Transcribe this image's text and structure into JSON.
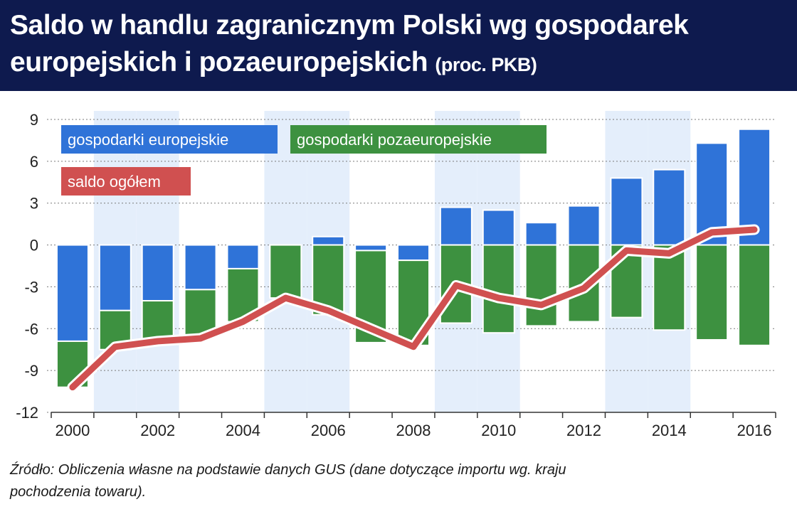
{
  "title": {
    "line1": "Saldo w handlu zagranicznym Polski wg gospodarek",
    "line2": "europejskich i pozaeuropejskich",
    "unit": "(proc. PKB)"
  },
  "source": {
    "line1": "Źródło: Obliczenia własne na podstawie danych GUS (dane dotyczące importu wg. kraju",
    "line2": "pochodzenia towaru)."
  },
  "colors": {
    "header": "#0e1a4e",
    "europe": "#2f73d8",
    "nonEurope": "#3d9140",
    "total": "#d05050",
    "stripe": "#e4eefb"
  },
  "chart_data": {
    "type": "bar",
    "stacked": true,
    "title": "Saldo w handlu zagranicznym Polski wg gospodarek europejskich i pozaeuropejskich (proc. PKB)",
    "categories": [
      "2000",
      "2001",
      "2002",
      "2003",
      "2004",
      "2005",
      "2006",
      "2007",
      "2008",
      "2009",
      "2010",
      "2011",
      "2012",
      "2013",
      "2014",
      "2015",
      "2016"
    ],
    "xtick_labels": [
      "2000",
      "2002",
      "2004",
      "2006",
      "2008",
      "2010",
      "2012",
      "2014",
      "2016"
    ],
    "ylim": [
      -12,
      9
    ],
    "yticks": [
      9,
      6,
      3,
      0,
      -3,
      -6,
      -9,
      -12
    ],
    "ytick_labels": [
      "9",
      "6",
      "3",
      "0",
      "-3",
      "-6",
      "-9",
      "-12"
    ],
    "legend_position": "top-left",
    "series": [
      {
        "name": "gospodarki europejskie",
        "type": "bar",
        "values": [
          -6.9,
          -4.7,
          -4.0,
          -3.2,
          -1.7,
          0.0,
          0.6,
          -0.4,
          -1.1,
          2.7,
          2.5,
          1.6,
          2.8,
          4.8,
          5.4,
          7.3,
          8.3
        ]
      },
      {
        "name": "gospodarki pozaeuropejskie",
        "type": "bar",
        "values": [
          -3.3,
          -2.8,
          -3.1,
          -3.5,
          -3.8,
          -3.8,
          -5.0,
          -6.6,
          -6.1,
          -5.6,
          -6.3,
          -5.8,
          -5.5,
          -5.2,
          -6.1,
          -6.8,
          -7.2
        ]
      },
      {
        "name": "saldo ogółem",
        "type": "line",
        "values": [
          -10.2,
          -7.3,
          -6.9,
          -6.7,
          -5.5,
          -3.8,
          -4.7,
          -6.0,
          -7.3,
          -2.9,
          -3.8,
          -4.3,
          -3.1,
          -0.4,
          -0.6,
          0.9,
          1.1
        ]
      }
    ]
  }
}
